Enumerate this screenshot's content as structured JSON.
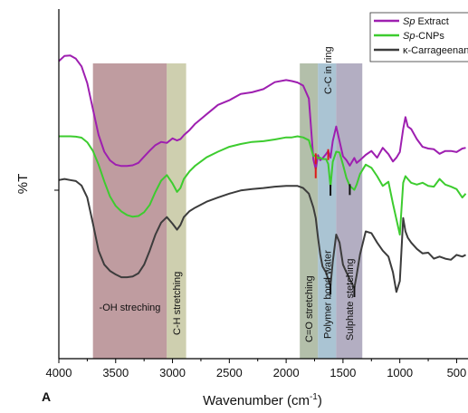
{
  "chart_data": {
    "type": "line",
    "title": "",
    "panel_label": "A",
    "xlabel_main": "Wavenumber (cm",
    "xlabel_sup": "-1",
    "xlabel_close": ")",
    "ylabel": "%T",
    "xlim": [
      4000,
      400
    ],
    "x_reversed": true,
    "ylim": [
      0,
      100
    ],
    "grid": false,
    "legend_position": "top-right",
    "xticks": [
      4000,
      3500,
      3000,
      2500,
      2000,
      1500,
      1000,
      500
    ],
    "xtick_labels": [
      "4000",
      "3500",
      "3000",
      "2500",
      "2000",
      "1500",
      "1000",
      "500"
    ],
    "bands": [
      {
        "label": "-OH streching",
        "from": 3700,
        "to": 3050,
        "color": "#a97b80",
        "text_orient": "horizontal"
      },
      {
        "label": "C-H stretching",
        "from": 3050,
        "to": 2880,
        "color": "#bdbf94",
        "text_orient": "vertical"
      },
      {
        "label": "C=O stretching",
        "from": 1880,
        "to": 1720,
        "color": "#9aaa8e",
        "text_orient": "vertical"
      },
      {
        "label": "Polymer bond water",
        "from": 1720,
        "to": 1560,
        "color": "#8eb0c4",
        "text_orient": "vertical"
      },
      {
        "label": "Sulphate stetching",
        "from": 1560,
        "to": 1330,
        "color": "#9a93ad",
        "text_orient": "vertical"
      }
    ],
    "top_annotation": "C-C in ring",
    "series": [
      {
        "name": "Extract",
        "name_prefix": "Sp",
        "color": "#9e1fb0",
        "x": [
          4000,
          3950,
          3900,
          3850,
          3800,
          3750,
          3700,
          3650,
          3600,
          3550,
          3500,
          3450,
          3400,
          3350,
          3300,
          3250,
          3200,
          3150,
          3100,
          3050,
          3000,
          2960,
          2930,
          2900,
          2850,
          2800,
          2700,
          2600,
          2500,
          2400,
          2300,
          2200,
          2100,
          2000,
          1950,
          1900,
          1850,
          1800,
          1760,
          1740,
          1720,
          1700,
          1680,
          1650,
          1630,
          1610,
          1590,
          1560,
          1530,
          1500,
          1470,
          1440,
          1400,
          1380,
          1350,
          1300,
          1250,
          1200,
          1150,
          1100,
          1060,
          1030,
          1000,
          970,
          950,
          930,
          900,
          850,
          800,
          750,
          700,
          650,
          600,
          550,
          500,
          450,
          420
        ],
        "y": [
          85.1,
          86.6,
          86.7,
          85.8,
          83.6,
          78.8,
          71.3,
          64.0,
          59.2,
          56.7,
          55.5,
          55.1,
          55.1,
          55.3,
          56.0,
          57.8,
          59.5,
          61.1,
          62.0,
          61.7,
          63.0,
          62.4,
          62.8,
          63.9,
          65.4,
          67.2,
          69.9,
          72.6,
          73.9,
          75.7,
          76.2,
          77.1,
          79.1,
          79.7,
          79.4,
          79.0,
          78.1,
          74.4,
          57.0,
          54.2,
          58.2,
          56.8,
          57.3,
          58.5,
          59.4,
          57.5,
          62.2,
          66.4,
          62.2,
          57.9,
          56.8,
          55.2,
          57.4,
          56.0,
          56.8,
          58.3,
          59.4,
          57.5,
          60.3,
          58.5,
          56.4,
          57.5,
          59.1,
          65.7,
          69.1,
          66.4,
          65.7,
          62.8,
          60.6,
          60.1,
          59.9,
          58.6,
          59.4,
          59.4,
          59.1,
          60.1,
          60.3
        ]
      },
      {
        "name": "CNPs",
        "name_prefix": "Sp-",
        "color": "#3dcc2f",
        "x": [
          4000,
          3950,
          3900,
          3850,
          3800,
          3750,
          3700,
          3650,
          3600,
          3550,
          3500,
          3450,
          3400,
          3350,
          3300,
          3250,
          3200,
          3150,
          3100,
          3050,
          3000,
          2960,
          2930,
          2900,
          2850,
          2800,
          2700,
          2600,
          2500,
          2400,
          2300,
          2200,
          2100,
          2000,
          1950,
          1900,
          1850,
          1800,
          1760,
          1740,
          1720,
          1700,
          1680,
          1650,
          1630,
          1610,
          1590,
          1560,
          1530,
          1500,
          1470,
          1440,
          1400,
          1380,
          1350,
          1300,
          1250,
          1200,
          1150,
          1100,
          1060,
          1030,
          1000,
          970,
          950,
          930,
          900,
          850,
          800,
          750,
          700,
          650,
          600,
          550,
          500,
          450,
          420
        ],
        "y": [
          63.6,
          63.6,
          63.6,
          63.5,
          63.2,
          61.9,
          59.4,
          55.5,
          50.7,
          46.4,
          43.7,
          42.1,
          41.1,
          40.6,
          40.8,
          41.9,
          44.0,
          47.7,
          50.9,
          52.5,
          50.1,
          47.7,
          48.8,
          51.4,
          53.6,
          55.2,
          57.6,
          59.2,
          60.6,
          61.4,
          62.0,
          62.2,
          62.7,
          63.3,
          63.3,
          63.6,
          63.3,
          62.5,
          57.9,
          58.2,
          57.3,
          57.5,
          57.1,
          57.1,
          55.7,
          49.2,
          56.3,
          59.2,
          59.0,
          55.5,
          51.7,
          49.4,
          48.3,
          49.8,
          52.8,
          55.5,
          54.6,
          52.2,
          49.4,
          50.6,
          44.3,
          39.9,
          35.5,
          50.3,
          52.2,
          51.4,
          50.3,
          49.8,
          50.3,
          49.4,
          49.2,
          51.4,
          49.8,
          49.2,
          48.5,
          46.1,
          47.2
        ]
      },
      {
        "name": "κ-Carrageenan",
        "name_prefix": "",
        "color": "#3c3c3c",
        "x": [
          4000,
          3950,
          3900,
          3850,
          3800,
          3750,
          3700,
          3650,
          3600,
          3550,
          3500,
          3450,
          3400,
          3350,
          3300,
          3250,
          3200,
          3150,
          3100,
          3050,
          3000,
          2960,
          2930,
          2900,
          2850,
          2800,
          2700,
          2600,
          2500,
          2400,
          2300,
          2200,
          2100,
          2000,
          1950,
          1900,
          1850,
          1800,
          1760,
          1740,
          1720,
          1700,
          1680,
          1650,
          1630,
          1610,
          1590,
          1560,
          1530,
          1500,
          1470,
          1440,
          1400,
          1380,
          1350,
          1300,
          1250,
          1200,
          1150,
          1100,
          1060,
          1030,
          1000,
          970,
          950,
          930,
          900,
          850,
          800,
          750,
          700,
          650,
          600,
          550,
          500,
          450,
          420
        ],
        "y": [
          51.1,
          51.4,
          51.1,
          50.8,
          49.5,
          46.1,
          38.6,
          30.9,
          26.9,
          25.1,
          24.1,
          23.3,
          23.3,
          23.5,
          24.4,
          26.9,
          30.9,
          35.5,
          38.9,
          40.5,
          38.6,
          36.9,
          38.2,
          40.5,
          42.2,
          43.2,
          44.9,
          46.1,
          47.2,
          48.1,
          48.5,
          48.8,
          49.2,
          49.4,
          49.4,
          49.4,
          48.8,
          47.2,
          43.2,
          40.2,
          34.6,
          29.8,
          26.4,
          24.7,
          22.7,
          20.9,
          27.7,
          35.5,
          33.2,
          26.9,
          24.7,
          22.7,
          20.2,
          23.9,
          29.8,
          36.4,
          35.9,
          33.2,
          30.9,
          29.2,
          24.7,
          19.1,
          22.2,
          40.2,
          36.4,
          34.6,
          33.2,
          31.4,
          30.1,
          30.3,
          28.6,
          29.2,
          28.6,
          28.3,
          29.7,
          29.2,
          29.7
        ]
      }
    ],
    "peak_markers": [
      {
        "series": 0,
        "x": 1740,
        "color": "#dd1a1a"
      },
      {
        "series": 0,
        "x": 1630,
        "color": "#dd1a1a"
      },
      {
        "series": 1,
        "x": 1740,
        "color": "#dd1a1a"
      },
      {
        "series": 1,
        "x": 1610,
        "color": "#111111"
      },
      {
        "series": 1,
        "x": 1440,
        "color": "#111111"
      },
      {
        "series": 2,
        "x": 1610,
        "color": "#111111"
      },
      {
        "series": 2,
        "x": 1400,
        "color": "#111111"
      }
    ]
  }
}
